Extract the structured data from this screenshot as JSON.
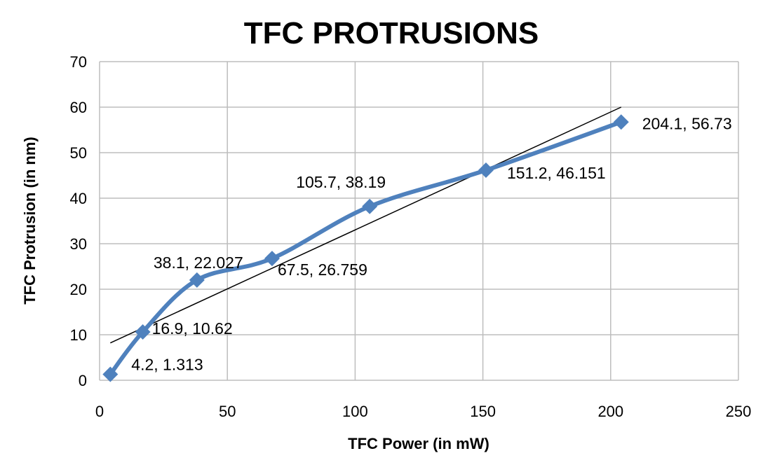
{
  "chart_data": {
    "type": "scatter",
    "title": "TFC PROTRUSIONS",
    "xlabel": "TFC Power (in mW)",
    "ylabel": "TFC Protrusion (in nm)",
    "xlim": [
      0,
      250
    ],
    "ylim": [
      0,
      70
    ],
    "xticks": [
      0,
      50,
      100,
      150,
      200,
      250
    ],
    "yticks": [
      0,
      10,
      20,
      30,
      40,
      50,
      60,
      70
    ],
    "grid": true,
    "series": [
      {
        "style": "smoothed line with diamond markers",
        "color": "#4f81bd",
        "points": [
          {
            "x": 4.2,
            "y": 1.313,
            "label": "4.2, 1.313"
          },
          {
            "x": 16.9,
            "y": 10.62,
            "label": "16.9, 10.62"
          },
          {
            "x": 38.1,
            "y": 22.027,
            "label": "38.1, 22.027"
          },
          {
            "x": 67.5,
            "y": 26.759,
            "label": "67.5, 26.759"
          },
          {
            "x": 105.7,
            "y": 38.19,
            "label": "105.7, 38.19"
          },
          {
            "x": 151.2,
            "y": 46.151,
            "label": "151.2, 46.151"
          },
          {
            "x": 204.1,
            "y": 56.73,
            "label": "204.1, 56.73"
          }
        ]
      }
    ],
    "trendline": {
      "type": "linear",
      "color": "#000000",
      "start": {
        "x": 4.2,
        "y": 8.2
      },
      "end": {
        "x": 204.1,
        "y": 60.0
      }
    }
  }
}
